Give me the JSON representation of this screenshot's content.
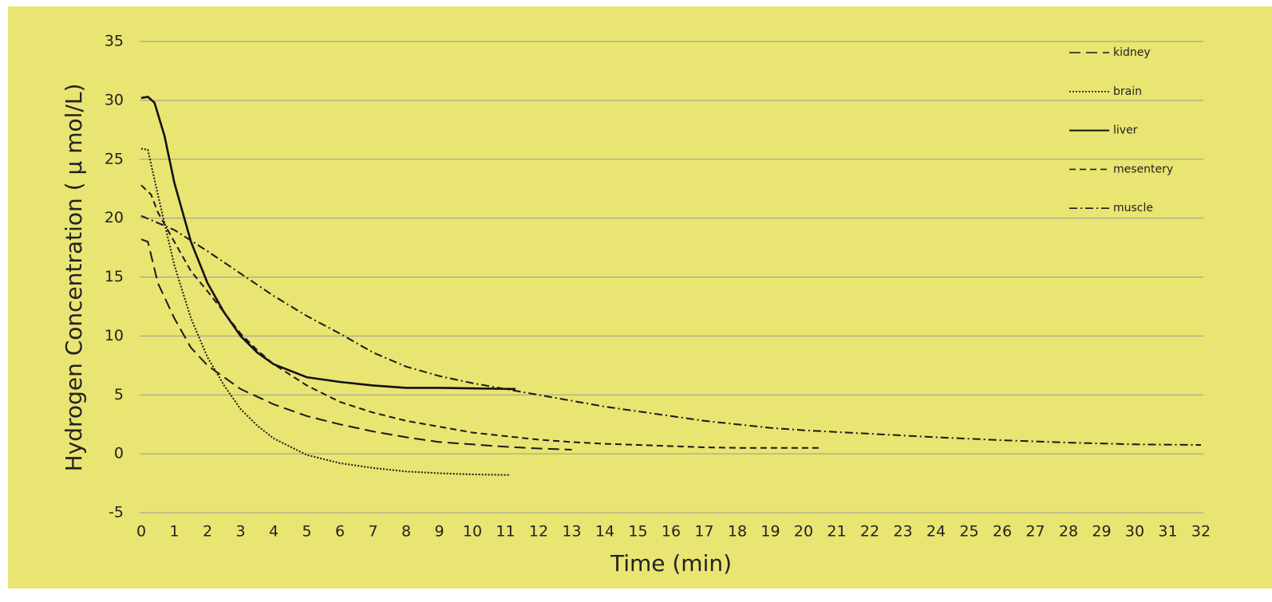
{
  "chart_data": {
    "type": "line",
    "xlabel": "Time (min)",
    "ylabel": "Hydrogen Concentration ( μ mol/L)",
    "xlim": [
      0,
      32
    ],
    "ylim": [
      -5,
      35
    ],
    "xticks": [
      0,
      1,
      2,
      3,
      4,
      5,
      6,
      7,
      8,
      9,
      10,
      11,
      12,
      13,
      14,
      15,
      16,
      17,
      18,
      19,
      20,
      21,
      22,
      23,
      24,
      25,
      26,
      27,
      28,
      29,
      30,
      31,
      32
    ],
    "yticks": [
      -5,
      0,
      5,
      10,
      15,
      20,
      25,
      30,
      35
    ],
    "grid": true,
    "legend": "upper right",
    "series": [
      {
        "name": "kidney",
        "color": "#1a1a1a",
        "dash": "14,7",
        "x": [
          0,
          0.2,
          0.5,
          1,
          1.5,
          2,
          3,
          4,
          5,
          6,
          7,
          8,
          9,
          10,
          11,
          12,
          13
        ],
        "values": [
          18.2,
          18,
          14.5,
          11.5,
          9,
          7.5,
          5.5,
          4.2,
          3.2,
          2.5,
          1.9,
          1.4,
          1,
          0.8,
          0.6,
          0.45,
          0.35
        ]
      },
      {
        "name": "brain",
        "color": "#1a1a1a",
        "dash": "2,2",
        "x": [
          0,
          0.2,
          0.5,
          1,
          1.5,
          2,
          2.5,
          3,
          3.5,
          4,
          5,
          6,
          7,
          8,
          9,
          10,
          11.1
        ],
        "values": [
          25.9,
          25.8,
          22,
          16,
          11.5,
          8.2,
          5.8,
          3.8,
          2.4,
          1.3,
          -0.1,
          -0.8,
          -1.2,
          -1.5,
          -1.65,
          -1.75,
          -1.8
        ]
      },
      {
        "name": "liver",
        "color": "#111111",
        "dash": "",
        "x": [
          0,
          0.2,
          0.4,
          0.7,
          1,
          1.5,
          2,
          2.5,
          3,
          3.5,
          4,
          5,
          6,
          7,
          8,
          9,
          10,
          11.3
        ],
        "values": [
          30.2,
          30.3,
          29.8,
          27,
          23,
          18,
          14.5,
          12,
          10,
          8.6,
          7.6,
          6.5,
          6.1,
          5.8,
          5.6,
          5.6,
          5.55,
          5.5
        ]
      },
      {
        "name": "mesentery",
        "color": "#1a1a1a",
        "dash": "8,5",
        "x": [
          0,
          0.3,
          0.5,
          1,
          1.5,
          2,
          2.5,
          3,
          3.5,
          4,
          5,
          6,
          7,
          8,
          9,
          10,
          11,
          12,
          13,
          14,
          15,
          16,
          17,
          18,
          19,
          20.5
        ],
        "values": [
          22.8,
          22,
          20.5,
          18,
          15.5,
          13.8,
          12,
          10.2,
          8.8,
          7.6,
          5.8,
          4.4,
          3.5,
          2.8,
          2.3,
          1.8,
          1.5,
          1.2,
          1,
          0.85,
          0.75,
          0.65,
          0.55,
          0.5,
          0.5,
          0.5
        ]
      },
      {
        "name": "muscle",
        "color": "#1a1a1a",
        "dash": "10,4,2,4",
        "x": [
          0,
          1,
          2,
          3,
          4,
          5,
          6,
          7,
          8,
          9,
          10,
          11,
          12,
          13,
          14,
          15,
          16,
          17,
          18,
          19,
          20,
          22,
          24,
          26,
          28,
          30,
          32
        ],
        "values": [
          20.2,
          19,
          17.2,
          15.3,
          13.4,
          11.7,
          10.2,
          8.6,
          7.4,
          6.6,
          6,
          5.5,
          5,
          4.5,
          4,
          3.6,
          3.2,
          2.8,
          2.5,
          2.2,
          2,
          1.7,
          1.4,
          1.15,
          0.95,
          0.8,
          0.75
        ]
      }
    ]
  }
}
